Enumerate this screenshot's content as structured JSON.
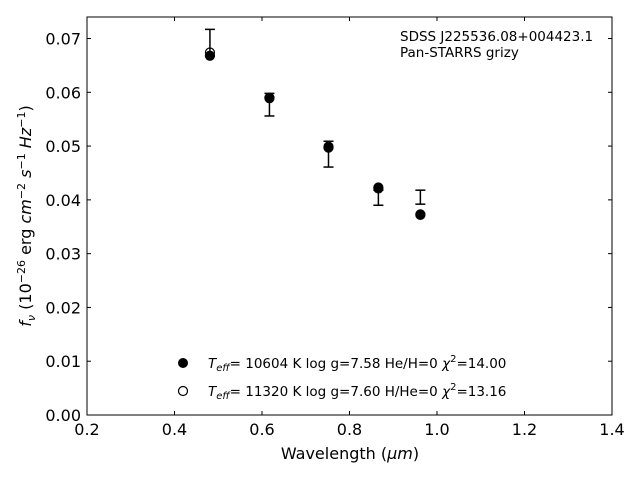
{
  "chart_data": {
    "type": "scatter",
    "xlabel_main": "Wavelength (",
    "xlabel_unit": "μm",
    "xlabel_end": ")",
    "ylabel_f": "f",
    "ylabel_nu": "ν",
    "ylabel_a": " (10",
    "ylabel_exp1": "−26",
    "ylabel_b": " erg ",
    "ylabel_cm": "cm",
    "ylabel_exp2": "−2",
    "ylabel_s": "s",
    "ylabel_exp3": "−1",
    "ylabel_hz": "Hz",
    "ylabel_exp4": "−1",
    "ylabel_c": ")",
    "xlim": [
      0.2,
      1.4
    ],
    "ylim": [
      0.0,
      0.074
    ],
    "xticks": [
      "0.2",
      "0.4",
      "0.6",
      "0.8",
      "1.0",
      "1.2",
      "1.4"
    ],
    "yticks": [
      "0.00",
      "0.01",
      "0.02",
      "0.03",
      "0.04",
      "0.05",
      "0.06",
      "0.07"
    ],
    "annotation_line1": "SDSS J225536.08+004423.1",
    "annotation_line2": "Pan-STARRS grizy",
    "legend_placement": "lower-center",
    "observed": {
      "x": [
        0.481,
        0.617,
        0.752,
        0.866,
        0.962
      ],
      "y": [
        0.0692,
        0.0577,
        0.0485,
        0.0404,
        0.0405
      ],
      "yerr": [
        0.0025,
        0.0021,
        0.0024,
        0.0014,
        0.0013
      ]
    },
    "series": [
      {
        "marker": "filled-circle",
        "x": [
          0.481,
          0.617,
          0.752,
          0.866,
          0.962
        ],
        "y": [
          0.0668,
          0.059,
          0.0499,
          0.0423,
          0.0373
        ],
        "legend_teff": "T",
        "legend_eff": "eff",
        "legend_rest": "= 10604 K  log g=7.58  He/H=0  ",
        "legend_chi": "χ",
        "legend_chi_exp": "2",
        "legend_chi_val": "=14.00"
      },
      {
        "marker": "open-circle",
        "x": [
          0.481,
          0.617,
          0.752,
          0.866,
          0.962
        ],
        "y": [
          0.0674,
          0.0589,
          0.0497,
          0.0421,
          0.0372
        ],
        "legend_teff": "T",
        "legend_eff": "eff",
        "legend_rest": "= 11320 K  log g=7.60  H/He=0  ",
        "legend_chi": "χ",
        "legend_chi_exp": "2",
        "legend_chi_val": "=13.16"
      }
    ],
    "colors": {
      "marker": "#000000",
      "background": "#ffffff"
    }
  }
}
